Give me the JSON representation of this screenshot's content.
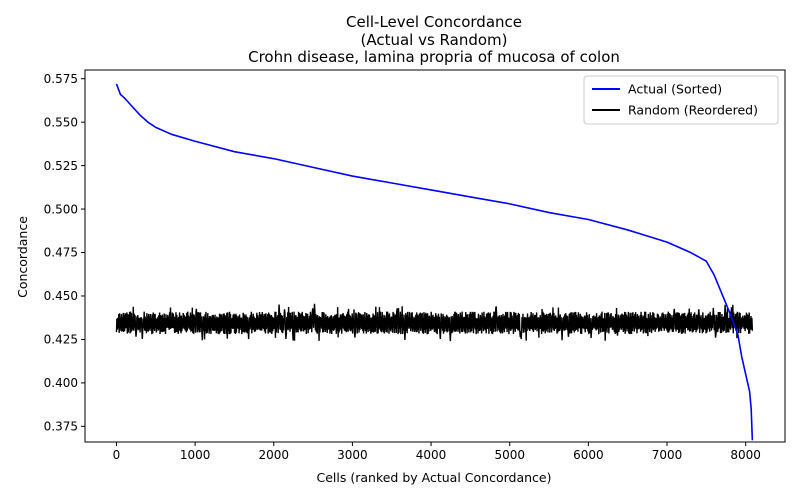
{
  "chart_data": {
    "type": "line",
    "title_lines": [
      "Cell-Level Concordance",
      "(Actual vs Random)",
      "Crohn disease, lamina propria of mucosa of colon"
    ],
    "xlabel": "Cells (ranked by Actual Concordance)",
    "ylabel": "Concordance",
    "xlim": [
      -400,
      8500
    ],
    "ylim": [
      0.366,
      0.58
    ],
    "xticks": [
      0,
      1000,
      2000,
      3000,
      4000,
      5000,
      6000,
      7000,
      8000
    ],
    "yticks": [
      0.375,
      0.4,
      0.425,
      0.45,
      0.475,
      0.5,
      0.525,
      0.55,
      0.575
    ],
    "ytick_labels": [
      "0.375",
      "0.400",
      "0.425",
      "0.450",
      "0.475",
      "0.500",
      "0.525",
      "0.550",
      "0.575"
    ],
    "grid": false,
    "legend_position": "top-right",
    "series": [
      {
        "name": "Actual (Sorted)",
        "color": "#0000ff",
        "x": [
          0,
          50,
          100,
          200,
          300,
          400,
          500,
          700,
          1000,
          1500,
          2000,
          2500,
          3000,
          3500,
          4000,
          4500,
          5000,
          5500,
          6000,
          6500,
          7000,
          7300,
          7500,
          7600,
          7700,
          7800,
          7900,
          7950,
          8000,
          8050,
          8070,
          8085
        ],
        "y": [
          0.572,
          0.566,
          0.564,
          0.559,
          0.554,
          0.55,
          0.547,
          0.543,
          0.539,
          0.533,
          0.529,
          0.524,
          0.519,
          0.515,
          0.511,
          0.507,
          0.503,
          0.498,
          0.494,
          0.488,
          0.481,
          0.475,
          0.47,
          0.462,
          0.451,
          0.44,
          0.428,
          0.415,
          0.405,
          0.395,
          0.385,
          0.367
        ]
      },
      {
        "name": "Random (Reordered)",
        "color": "#000000",
        "x_range": [
          0,
          8085
        ],
        "baseline": 0.434,
        "typical_band": [
          0.428,
          0.441
        ],
        "extremes": [
          0.424,
          0.446
        ]
      }
    ]
  }
}
